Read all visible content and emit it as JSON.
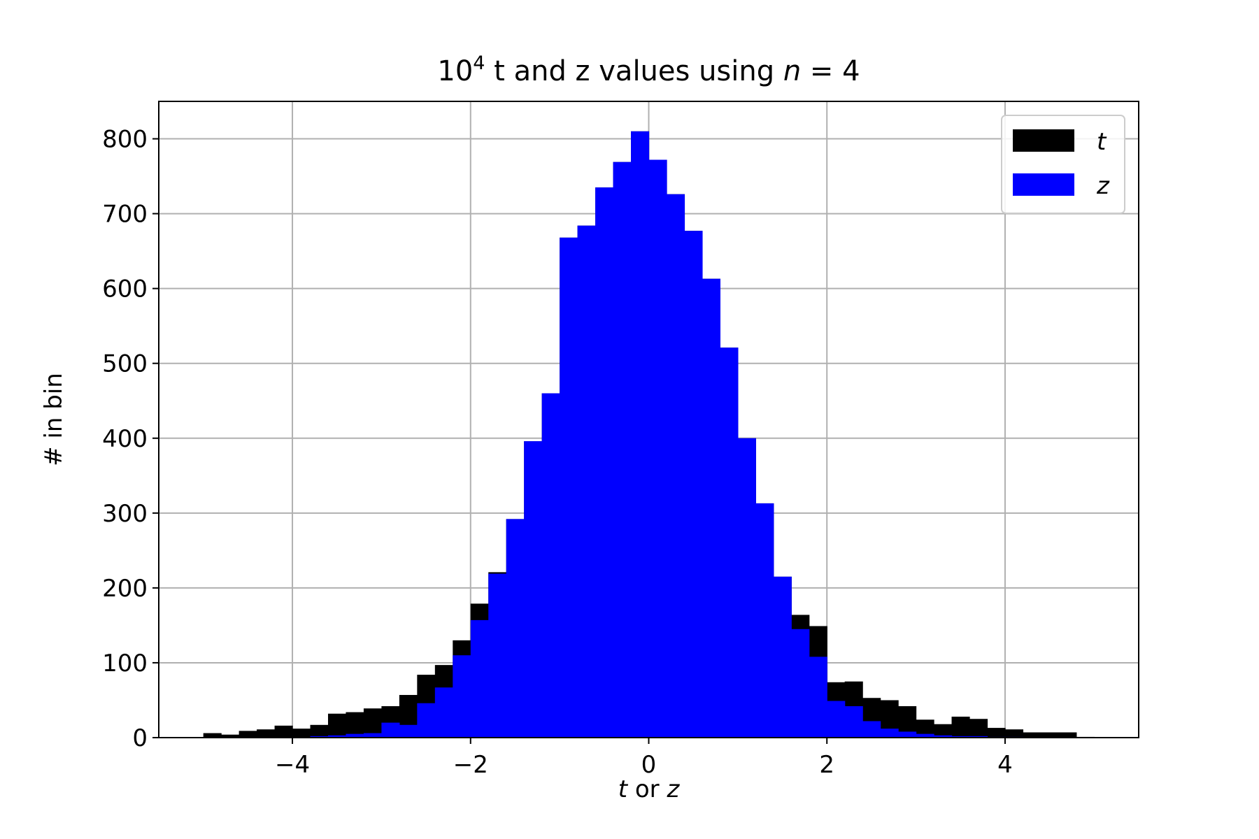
{
  "chart_data": {
    "type": "bar",
    "title": {
      "prefix": "10",
      "superscript": "4",
      "middle": " t and z values using ",
      "n_symbol": "n",
      "n_equals": " = 4"
    },
    "xlabel": {
      "italic_t": "t",
      "or": " or ",
      "italic_z": "z"
    },
    "ylabel": "# in bin",
    "xlim": [
      -5.5,
      5.5
    ],
    "ylim": [
      0,
      850
    ],
    "xticks": [
      -4,
      -2,
      0,
      2,
      4
    ],
    "xtick_labels": [
      "−4",
      "−2",
      "0",
      "2",
      "4"
    ],
    "yticks": [
      0,
      100,
      200,
      300,
      400,
      500,
      600,
      700,
      800
    ],
    "ytick_labels": [
      "0",
      "100",
      "200",
      "300",
      "400",
      "500",
      "600",
      "700",
      "800"
    ],
    "grid": true,
    "legend_placement": "top-right",
    "bin_edges": [
      -5.0,
      -4.8,
      -4.6,
      -4.4,
      -4.2,
      -4.0,
      -3.8,
      -3.6,
      -3.4,
      -3.2,
      -3.0,
      -2.8,
      -2.6,
      -2.4,
      -2.2,
      -2.0,
      -1.8,
      -1.6,
      -1.4,
      -1.2,
      -1.0,
      -0.8,
      -0.6,
      -0.4,
      -0.2,
      0.0,
      0.2,
      0.4,
      0.6,
      0.8,
      1.0,
      1.2,
      1.4,
      1.6,
      1.8,
      2.0,
      2.2,
      2.4,
      2.6,
      2.8,
      3.0,
      3.2,
      3.4,
      3.6,
      3.8,
      4.0,
      4.2,
      4.4,
      4.6,
      4.8,
      5.0
    ],
    "series": [
      {
        "name": "t",
        "color": "#000000",
        "values": [
          6,
          4,
          9,
          11,
          16,
          12,
          17,
          32,
          34,
          39,
          42,
          57,
          84,
          97,
          130,
          179,
          221,
          292,
          396,
          460,
          668,
          684,
          735,
          769,
          810,
          772,
          726,
          677,
          613,
          521,
          400,
          313,
          215,
          164,
          149,
          74,
          75,
          53,
          50,
          42,
          24,
          18,
          28,
          25,
          13,
          11,
          7,
          7,
          7,
          1
        ]
      },
      {
        "name": "z",
        "color": "#0000ff",
        "values": [
          0,
          0,
          0,
          0,
          0,
          0,
          2,
          3,
          5,
          6,
          20,
          17,
          46,
          67,
          110,
          157,
          219,
          292,
          396,
          460,
          668,
          684,
          735,
          769,
          810,
          772,
          726,
          677,
          613,
          521,
          400,
          313,
          215,
          145,
          108,
          49,
          42,
          22,
          12,
          8,
          5,
          3,
          2,
          2,
          1,
          1,
          0,
          0,
          0,
          0
        ]
      }
    ]
  }
}
